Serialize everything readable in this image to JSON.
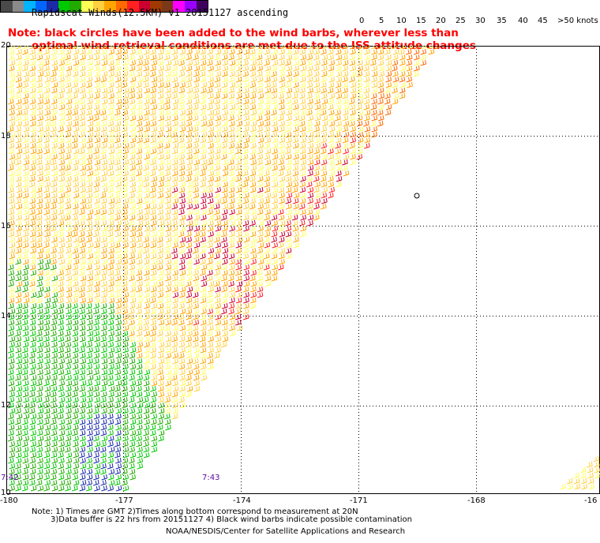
{
  "title": "Rapidscat Winds(12.5KM) v1 20151127 ascending",
  "note": {
    "line1": "Note: black circles have been added to the wind barbs, wherever less than",
    "line2": "optimal wind retrieval conditions are met due to the ISS attitude changes"
  },
  "legend": {
    "colors": [
      "#4a4a4a",
      "#8a8a8a",
      "#00b4ff",
      "#0066ff",
      "#1a2aa8",
      "#00c800",
      "#22aa00",
      "#ffff55",
      "#ffd040",
      "#ffa400",
      "#ff6a00",
      "#ff2020",
      "#cc0030",
      "#a03a00",
      "#7a3a1a",
      "#ff00ff",
      "#9a00ff",
      "#400060"
    ],
    "labels": [
      {
        "text": "0",
        "left": 455
      },
      {
        "text": "5",
        "left": 480
      },
      {
        "text": "10",
        "left": 502
      },
      {
        "text": "15",
        "left": 527
      },
      {
        "text": "20",
        "left": 552
      },
      {
        "text": "25",
        "left": 577
      },
      {
        "text": "30",
        "left": 602
      },
      {
        "text": "35",
        "left": 629
      },
      {
        "text": "40",
        "left": 656
      },
      {
        "text": "45",
        "left": 681
      },
      {
        "text": ">50 knots",
        "left": 706
      }
    ]
  },
  "axes": {
    "lat_labels": [
      "20",
      "18",
      "16",
      "14",
      "12",
      "10"
    ],
    "lon_labels": [
      "-180",
      "-177",
      "-174",
      "-171",
      "-168",
      "-16"
    ]
  },
  "times": [
    "7:42",
    "7:43"
  ],
  "footer": {
    "line1": "Note: 1) Times are GMT 2)Times along bottom correspond to measurement at 20N",
    "line2": "3)Data buffer is 22 hrs from 20151127 4) Black wind barbs indicate possible contamination",
    "credit": "NOAA/NESDIS/Center for Satellite Applications and Research"
  }
}
